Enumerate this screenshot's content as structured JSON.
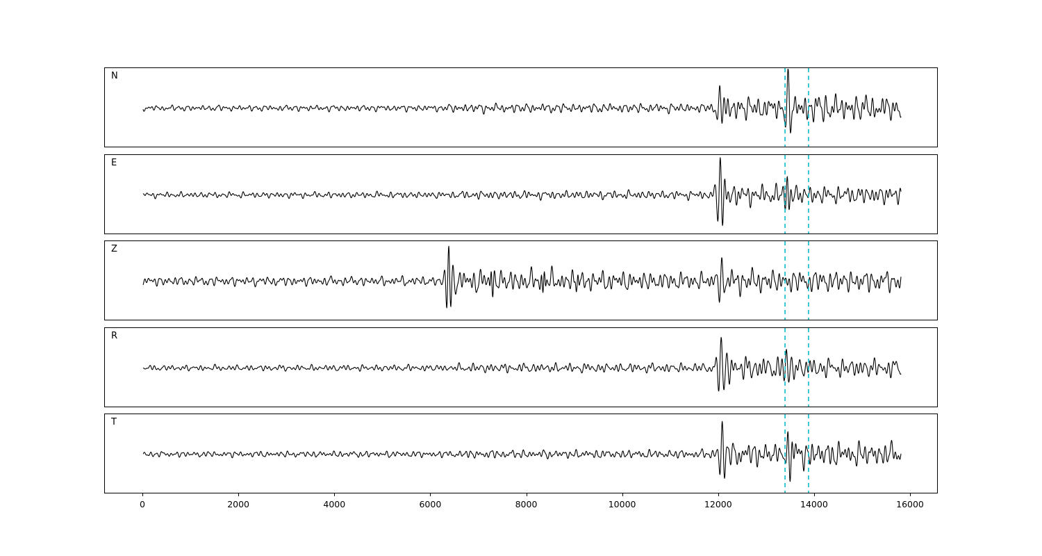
{
  "chart_data": {
    "type": "line",
    "title": "",
    "xlabel": "",
    "ylabel": "",
    "description": "Five stacked seismic waveform traces (components N, E, Z, R, T) sharing one x-axis; two dashed cyan vertical marker lines cross all panels",
    "x_ticks": [
      0,
      2000,
      4000,
      6000,
      8000,
      10000,
      12000,
      14000,
      16000
    ],
    "xlim": [
      -800,
      16600
    ],
    "trace_x_range": [
      0,
      15800
    ],
    "marker_lines": [
      13380,
      13870
    ],
    "grid": false,
    "legend": "none",
    "colors": {
      "trace": "#000000",
      "marker": "#17becf",
      "axes": "#000000",
      "background": "#ffffff"
    },
    "traces": [
      {
        "label": "N",
        "seed": 11,
        "envelope": [
          [
            0,
            3
          ],
          [
            6200,
            3.5
          ],
          [
            6600,
            5
          ],
          [
            11800,
            5
          ],
          [
            12100,
            14
          ],
          [
            12600,
            12
          ],
          [
            13200,
            12
          ],
          [
            13650,
            17
          ],
          [
            14300,
            15
          ],
          [
            15800,
            13
          ]
        ],
        "bursts": [
          {
            "x": 12020,
            "amp": 34,
            "w": 60
          },
          {
            "x": 13440,
            "amp": 46,
            "w": 70
          }
        ]
      },
      {
        "label": "E",
        "seed": 22,
        "envelope": [
          [
            0,
            3
          ],
          [
            6400,
            3.5
          ],
          [
            6800,
            4.5
          ],
          [
            11800,
            4.5
          ],
          [
            12200,
            12
          ],
          [
            13000,
            10
          ],
          [
            13550,
            11
          ],
          [
            14200,
            9
          ],
          [
            15800,
            10
          ]
        ],
        "bursts": [
          {
            "x": 12030,
            "amp": 50,
            "w": 65
          },
          {
            "x": 13430,
            "amp": 30,
            "w": 55
          }
        ]
      },
      {
        "label": "Z",
        "seed": 33,
        "envelope": [
          [
            0,
            5
          ],
          [
            6300,
            5
          ],
          [
            6550,
            13
          ],
          [
            7600,
            12
          ],
          [
            9200,
            11
          ],
          [
            11800,
            9
          ],
          [
            12200,
            14
          ],
          [
            13200,
            12
          ],
          [
            14200,
            12
          ],
          [
            15800,
            11
          ]
        ],
        "bursts": [
          {
            "x": 6370,
            "amp": 52,
            "w": 55
          },
          {
            "x": 7260,
            "amp": 15,
            "w": 40
          },
          {
            "x": 8360,
            "amp": 17,
            "w": 40
          },
          {
            "x": 9060,
            "amp": 13,
            "w": 40
          },
          {
            "x": 12060,
            "amp": 20,
            "w": 70
          }
        ]
      },
      {
        "label": "R",
        "seed": 44,
        "envelope": [
          [
            0,
            3
          ],
          [
            6400,
            3.5
          ],
          [
            6800,
            5
          ],
          [
            11800,
            5
          ],
          [
            12300,
            14
          ],
          [
            13200,
            11
          ],
          [
            13650,
            12
          ],
          [
            14300,
            10
          ],
          [
            15800,
            10
          ]
        ],
        "bursts": [
          {
            "x": 12050,
            "amp": 48,
            "w": 75
          },
          {
            "x": 13410,
            "amp": 26,
            "w": 60
          }
        ]
      },
      {
        "label": "T",
        "seed": 55,
        "envelope": [
          [
            0,
            3
          ],
          [
            6400,
            3.5
          ],
          [
            6800,
            4.5
          ],
          [
            11800,
            4.5
          ],
          [
            12250,
            13
          ],
          [
            13150,
            12
          ],
          [
            13650,
            15
          ],
          [
            14600,
            13
          ],
          [
            15800,
            12
          ]
        ],
        "bursts": [
          {
            "x": 12070,
            "amp": 36,
            "w": 65
          },
          {
            "x": 13440,
            "amp": 38,
            "w": 60
          }
        ]
      }
    ]
  }
}
